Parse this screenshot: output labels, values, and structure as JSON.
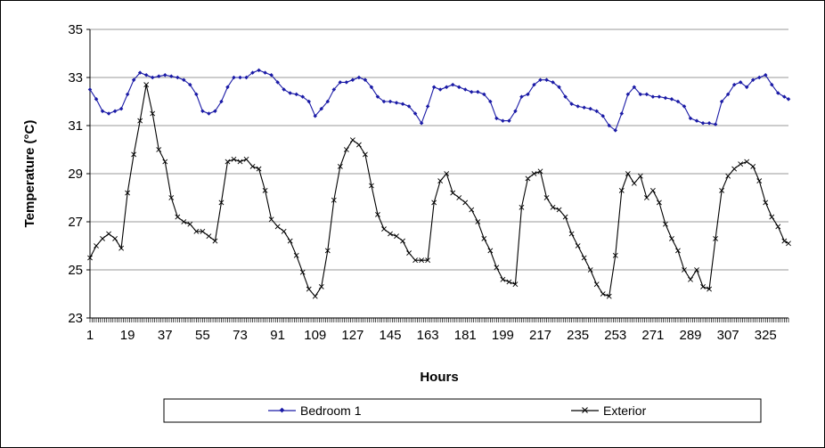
{
  "chart_data": {
    "type": "line",
    "title": "",
    "xlabel": "Hours",
    "ylabel": "Temperature (°C)",
    "ylim": [
      23,
      35
    ],
    "yticks": [
      23,
      25,
      27,
      29,
      31,
      33,
      35
    ],
    "xlim": [
      1,
      336
    ],
    "xticks": [
      1,
      19,
      37,
      55,
      73,
      91,
      109,
      127,
      145,
      163,
      181,
      199,
      217,
      235,
      253,
      271,
      289,
      307,
      325
    ],
    "grid": "horizontal",
    "legend_position": "bottom",
    "x": [
      1,
      4,
      7,
      10,
      13,
      16,
      19,
      22,
      25,
      28,
      31,
      34,
      37,
      40,
      43,
      46,
      49,
      52,
      55,
      58,
      61,
      64,
      67,
      70,
      73,
      76,
      79,
      82,
      85,
      88,
      91,
      94,
      97,
      100,
      103,
      106,
      109,
      112,
      115,
      118,
      121,
      124,
      127,
      130,
      133,
      136,
      139,
      142,
      145,
      148,
      151,
      154,
      157,
      160,
      163,
      166,
      169,
      172,
      175,
      178,
      181,
      184,
      187,
      190,
      193,
      196,
      199,
      202,
      205,
      208,
      211,
      214,
      217,
      220,
      223,
      226,
      229,
      232,
      235,
      238,
      241,
      244,
      247,
      250,
      253,
      256,
      259,
      262,
      265,
      268,
      271,
      274,
      277,
      280,
      283,
      286,
      289,
      292,
      295,
      298,
      301,
      304,
      307,
      310,
      313,
      316,
      319,
      322,
      325,
      328,
      331,
      334,
      336
    ],
    "series": [
      {
        "name": "Bedroom 1",
        "color": "#1a1aa6",
        "marker": "diamond",
        "values": [
          32.5,
          32.1,
          31.6,
          31.5,
          31.6,
          31.7,
          32.3,
          32.9,
          33.2,
          33.1,
          33.0,
          33.05,
          33.1,
          33.05,
          33.0,
          32.9,
          32.7,
          32.3,
          31.6,
          31.5,
          31.6,
          32.0,
          32.6,
          33.0,
          33.0,
          33.0,
          33.2,
          33.3,
          33.2,
          33.1,
          32.8,
          32.5,
          32.35,
          32.3,
          32.2,
          32.0,
          31.4,
          31.7,
          32.0,
          32.5,
          32.8,
          32.8,
          32.9,
          33.0,
          32.9,
          32.6,
          32.2,
          32.0,
          32.0,
          31.95,
          31.9,
          31.8,
          31.5,
          31.1,
          31.8,
          32.6,
          32.5,
          32.6,
          32.7,
          32.6,
          32.5,
          32.4,
          32.4,
          32.3,
          32.0,
          31.3,
          31.2,
          31.2,
          31.6,
          32.2,
          32.3,
          32.7,
          32.9,
          32.9,
          32.8,
          32.6,
          32.2,
          31.9,
          31.8,
          31.75,
          31.7,
          31.6,
          31.4,
          31.0,
          30.8,
          31.5,
          32.3,
          32.6,
          32.3,
          32.3,
          32.2,
          32.2,
          32.15,
          32.1,
          32.0,
          31.8,
          31.3,
          31.2,
          31.1,
          31.1,
          31.05,
          32.0,
          32.3,
          32.7,
          32.8,
          32.6,
          32.9,
          33.0,
          33.1,
          32.7,
          32.35,
          32.2,
          32.1
        ]
      },
      {
        "name": "Exterior",
        "color": "#000000",
        "marker": "x",
        "values": [
          25.5,
          26.0,
          26.3,
          26.5,
          26.3,
          25.9,
          28.2,
          29.8,
          31.2,
          32.7,
          31.5,
          30.0,
          29.5,
          28.0,
          27.2,
          27.0,
          26.9,
          26.6,
          26.6,
          26.4,
          26.2,
          27.8,
          29.5,
          29.6,
          29.5,
          29.6,
          29.3,
          29.2,
          28.3,
          27.1,
          26.8,
          26.6,
          26.2,
          25.6,
          24.9,
          24.2,
          23.9,
          24.3,
          25.8,
          27.9,
          29.3,
          30.0,
          30.4,
          30.2,
          29.8,
          28.5,
          27.3,
          26.7,
          26.5,
          26.4,
          26.2,
          25.7,
          25.4,
          25.4,
          25.4,
          27.8,
          28.7,
          29.0,
          28.2,
          28.0,
          27.8,
          27.5,
          27.0,
          26.3,
          25.8,
          25.1,
          24.6,
          24.5,
          24.4,
          27.6,
          28.8,
          29.0,
          29.1,
          28.0,
          27.6,
          27.5,
          27.2,
          26.5,
          26.0,
          25.5,
          25.0,
          24.4,
          24.0,
          23.9,
          25.6,
          28.3,
          29.0,
          28.6,
          28.9,
          28.0,
          28.3,
          27.8,
          26.9,
          26.3,
          25.8,
          25.0,
          24.6,
          25.0,
          24.3,
          24.2,
          26.3,
          28.3,
          28.9,
          29.2,
          29.4,
          29.5,
          29.3,
          28.7,
          27.8,
          27.2,
          26.8,
          26.2,
          26.1
        ]
      }
    ]
  }
}
